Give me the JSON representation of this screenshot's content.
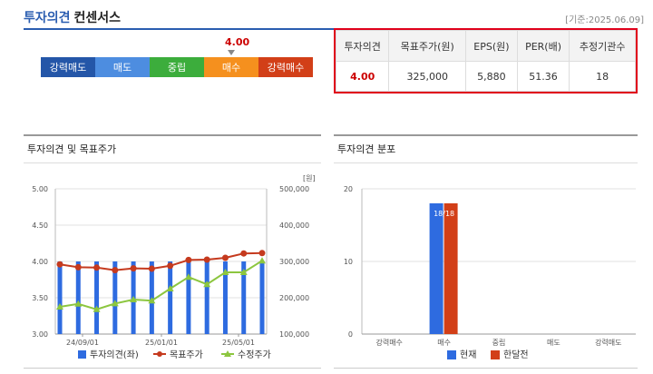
{
  "header": {
    "title_a": "투자의견",
    "title_b": "컨센서스",
    "base_date": "[기준:2025.06.09]"
  },
  "scale": {
    "segments": [
      {
        "label": "강력매도",
        "color": "#2456a8"
      },
      {
        "label": "매도",
        "color": "#4d8de0"
      },
      {
        "label": "중립",
        "color": "#3cad3c"
      },
      {
        "label": "매수",
        "color": "#f5901e"
      },
      {
        "label": "강력매수",
        "color": "#d23f18"
      }
    ],
    "marker_value": "4.00"
  },
  "summary": {
    "headers": [
      "투자의견",
      "목표주가(원)",
      "EPS(원)",
      "PER(배)",
      "추정기관수"
    ],
    "values": [
      "4.00",
      "325,000",
      "5,880",
      "51.36",
      "18"
    ]
  },
  "panel1": {
    "title": "투자의견 및 목표주가"
  },
  "panel2": {
    "title": "투자의견 분포"
  },
  "chart_data": [
    {
      "type": "bar+line",
      "y_left": {
        "ticks": [
          "5.00",
          "4.50",
          "4.00",
          "3.50",
          "3.00"
        ],
        "range": [
          3.0,
          5.0
        ]
      },
      "y_right": {
        "unit": "[원]",
        "ticks": [
          "500,000",
          "400,000",
          "300,000",
          "200,000",
          "100,000"
        ],
        "range": [
          100000,
          500000
        ]
      },
      "x_ticks": [
        "24/09/01",
        "25/01/01",
        "25/05/01"
      ],
      "opinion": [
        4.0,
        4.0,
        4.0,
        4.0,
        4.0,
        4.0,
        4.0,
        4.0,
        4.0,
        4.0,
        4.0,
        4.0
      ],
      "target_price": [
        292000,
        284000,
        283000,
        276000,
        281000,
        280000,
        288000,
        304000,
        305000,
        310000,
        322000,
        323000
      ],
      "revised_price": [
        175000,
        183000,
        168000,
        184000,
        195000,
        192000,
        225000,
        257000,
        237000,
        270000,
        270000,
        302000
      ],
      "legend": [
        "투자의견(좌)",
        "목표주가",
        "수정주가"
      ],
      "colors": {
        "opinion": "#2e6be0",
        "target": "#c53a1e",
        "revised": "#8cc63f"
      }
    },
    {
      "type": "bar",
      "categories": [
        "강력매수",
        "매수",
        "중립",
        "매도",
        "강력매도"
      ],
      "y_ticks": [
        "20",
        "10",
        "0"
      ],
      "ylim": [
        0,
        20
      ],
      "series": [
        {
          "name": "현재",
          "values": [
            0,
            18,
            0,
            0,
            0
          ],
          "color": "#2e6be0"
        },
        {
          "name": "한달전",
          "values": [
            0,
            18,
            0,
            0,
            0
          ],
          "color": "#d23f18"
        }
      ],
      "bar_label": "18/18"
    }
  ]
}
